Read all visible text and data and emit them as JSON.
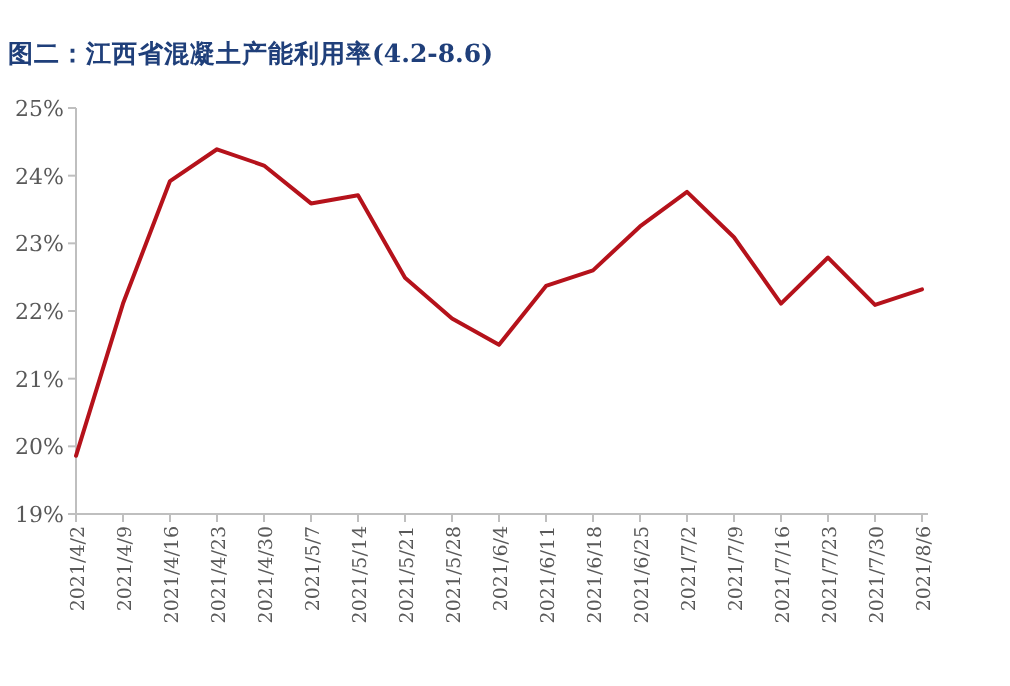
{
  "chart_data": {
    "type": "line",
    "title": "图二：江西省混凝土产能利用率(4.2-8.6)",
    "categories": [
      "2021/4/2",
      "2021/4/9",
      "2021/4/16",
      "2021/4/23",
      "2021/4/30",
      "2021/5/7",
      "2021/5/14",
      "2021/5/21",
      "2021/5/28",
      "2021/6/4",
      "2021/6/11",
      "2021/6/18",
      "2021/6/25",
      "2021/7/2",
      "2021/7/9",
      "2021/7/16",
      "2021/7/23",
      "2021/7/30",
      "2021/8/6"
    ],
    "series": [
      {
        "color": "#b5121b",
        "values": [
          19.86,
          22.11,
          23.92,
          24.39,
          24.15,
          23.59,
          23.71,
          22.49,
          21.89,
          21.5,
          22.37,
          22.6,
          23.25,
          23.76,
          23.09,
          22.11,
          22.79,
          22.09,
          22.32
        ]
      }
    ],
    "ylim": [
      19,
      25
    ],
    "yticks": [
      {
        "value": 19,
        "label": "19%"
      },
      {
        "value": 20,
        "label": "20%"
      },
      {
        "value": 21,
        "label": "21%"
      },
      {
        "value": 22,
        "label": "22%"
      },
      {
        "value": 23,
        "label": "23%"
      },
      {
        "value": 24,
        "label": "24%"
      },
      {
        "value": 25,
        "label": "25%"
      }
    ],
    "grid": false,
    "marker": "none",
    "line_style": "solid"
  }
}
